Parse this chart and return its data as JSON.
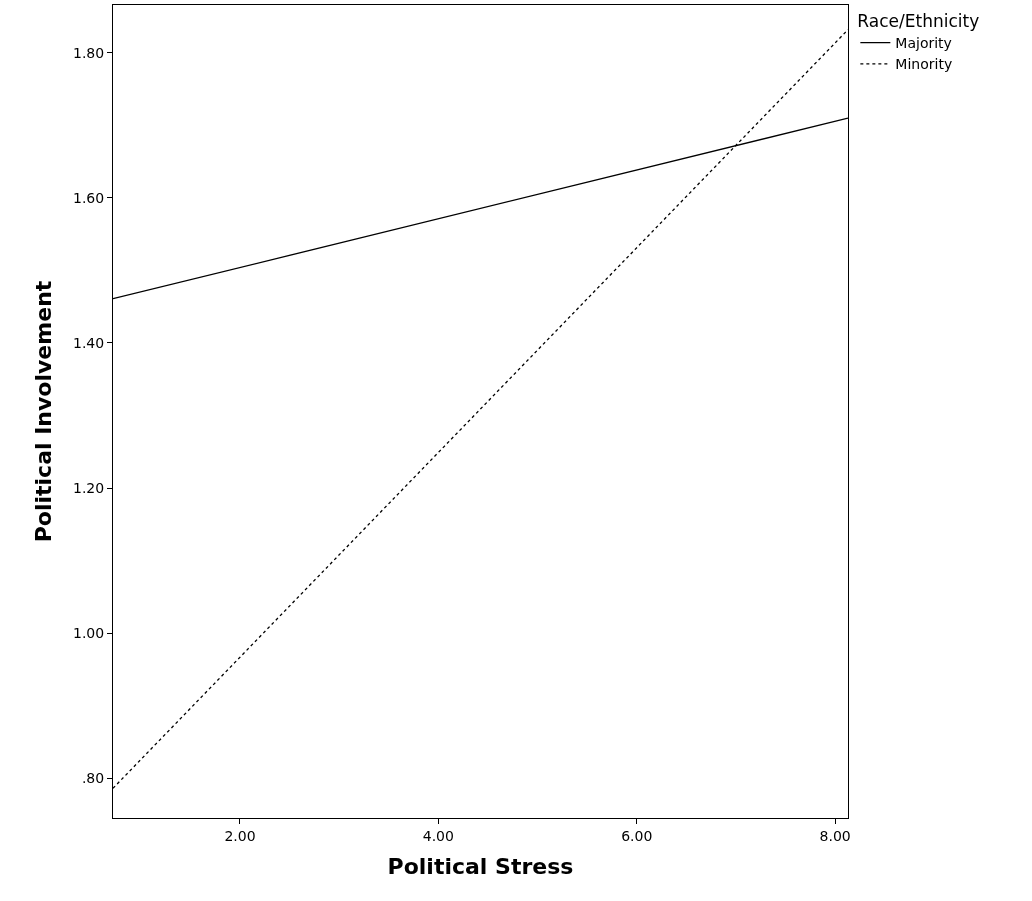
{
  "chart_data": {
    "type": "line",
    "xlabel": "Political Stress",
    "ylabel": "Political Involvement",
    "legend_title": "Race/Ethnicity",
    "legend": "top right",
    "marker": "none",
    "x": [
      0.72,
      8.13
    ],
    "series": [
      {
        "name": "Majority",
        "color": "#000000",
        "line_style": "solid",
        "values": [
          1.461,
          1.71
        ]
      },
      {
        "name": "Minority",
        "color": "#000000",
        "line_style": "dotted",
        "values": [
          0.786,
          1.832
        ]
      }
    ],
    "xlim": [
      0.72,
      8.13
    ],
    "xticks": [
      {
        "value": 2,
        "label": "2.00"
      },
      {
        "value": 4,
        "label": "4.00"
      },
      {
        "value": 6,
        "label": "6.00"
      },
      {
        "value": 8,
        "label": "8.00"
      }
    ],
    "ylim": [
      0.745,
      1.866
    ],
    "yticks": [
      {
        "value": 0.8,
        "label": ".80"
      },
      {
        "value": 1.0,
        "label": "1.00"
      },
      {
        "value": 1.2,
        "label": "1.20"
      },
      {
        "value": 1.4,
        "label": "1.40"
      },
      {
        "value": 1.6,
        "label": "1.60"
      },
      {
        "value": 1.8,
        "label": "1.80"
      }
    ]
  }
}
